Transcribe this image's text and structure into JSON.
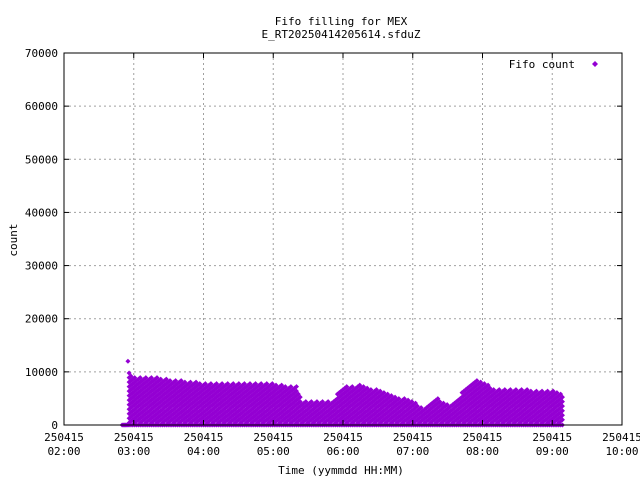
{
  "chart_data": {
    "type": "scatter",
    "title": "Fifo filling for MEX",
    "subtitle": "E_RT20250414205614.sfduZ",
    "xlabel": "Time (yymmdd HH:MM)",
    "ylabel": "count",
    "ylim": [
      0,
      70000
    ],
    "yticks": [
      0,
      10000,
      20000,
      30000,
      40000,
      50000,
      60000,
      70000
    ],
    "xlim": [
      "2025-04-15 02:00",
      "2025-04-15 10:00"
    ],
    "xticks": [
      {
        "date": "250415",
        "time": "02:00"
      },
      {
        "date": "250415",
        "time": "03:00"
      },
      {
        "date": "250415",
        "time": "04:00"
      },
      {
        "date": "250415",
        "time": "05:00"
      },
      {
        "date": "250415",
        "time": "06:00"
      },
      {
        "date": "250415",
        "time": "07:00"
      },
      {
        "date": "250415",
        "time": "08:00"
      },
      {
        "date": "250415",
        "time": "09:00"
      },
      {
        "date": "250415",
        "time": "10:00"
      }
    ],
    "grid": true,
    "legend_position": "top-right",
    "color": "#9400d3",
    "series": [
      {
        "name": "Fifo count",
        "band_step": 850,
        "start_x": "2025-04-15 02:55",
        "start_peak": 12000,
        "envelope": [
          {
            "x": "2025-04-15 02:56",
            "max": 10200
          },
          {
            "x": "2025-04-15 03:00",
            "max": 9000
          },
          {
            "x": "2025-04-15 03:20",
            "max": 9000
          },
          {
            "x": "2025-04-15 03:40",
            "max": 8400
          },
          {
            "x": "2025-04-15 04:00",
            "max": 8000
          },
          {
            "x": "2025-04-15 04:30",
            "max": 8000
          },
          {
            "x": "2025-04-15 05:00",
            "max": 7800
          },
          {
            "x": "2025-04-15 05:20",
            "max": 7300
          },
          {
            "x": "2025-04-15 05:25",
            "max": 4400
          },
          {
            "x": "2025-04-15 05:50",
            "max": 4400
          },
          {
            "x": "2025-04-15 06:00",
            "max": 7200
          },
          {
            "x": "2025-04-15 06:15",
            "max": 7600
          },
          {
            "x": "2025-04-15 06:30",
            "max": 6600
          },
          {
            "x": "2025-04-15 06:45",
            "max": 5400
          },
          {
            "x": "2025-04-15 07:00",
            "max": 4600
          },
          {
            "x": "2025-04-15 07:10",
            "max": 3000
          },
          {
            "x": "2025-04-15 07:20",
            "max": 5300
          },
          {
            "x": "2025-04-15 07:30",
            "max": 3800
          },
          {
            "x": "2025-04-15 07:40",
            "max": 5600
          },
          {
            "x": "2025-04-15 07:55",
            "max": 8700
          },
          {
            "x": "2025-04-15 08:10",
            "max": 6900
          },
          {
            "x": "2025-04-15 08:30",
            "max": 6700
          },
          {
            "x": "2025-04-15 09:00",
            "max": 6600
          },
          {
            "x": "2025-04-15 09:10",
            "max": 5800
          }
        ]
      }
    ]
  }
}
